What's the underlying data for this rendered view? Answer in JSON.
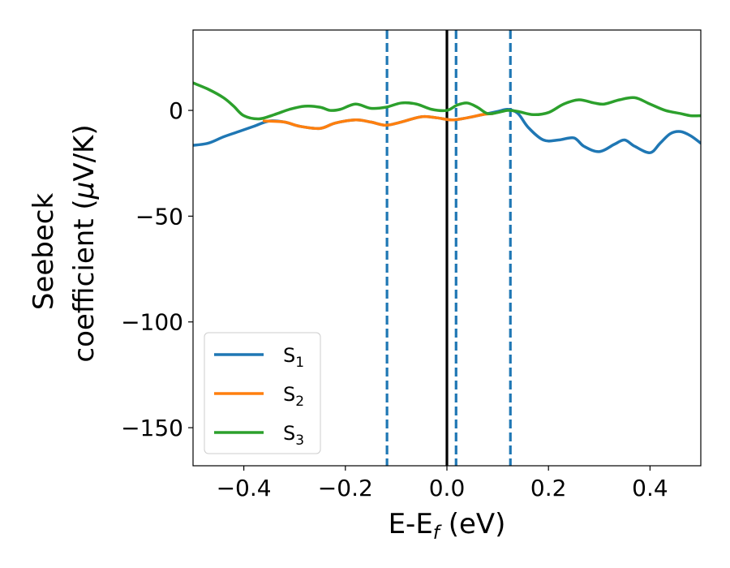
{
  "chart_data": {
    "type": "line",
    "title": "",
    "xlabel": "E-E",
    "xlabel_sub": "f",
    "xlabel_unit": " (eV)",
    "ylabel_line1": "Seebeck",
    "ylabel_line2": "coefficient  (",
    "ylabel_mu": "μ",
    "ylabel_unit": "V/K)",
    "xlim": [
      -0.5,
      0.5
    ],
    "ylim": [
      -168,
      38
    ],
    "xticks": [
      -0.4,
      -0.2,
      0.0,
      0.2,
      0.4
    ],
    "xtick_labels": [
      "−0.4",
      "−0.2",
      "0.0",
      "0.2",
      "0.4"
    ],
    "yticks": [
      0,
      -50,
      -100,
      -150
    ],
    "ytick_labels": [
      "0",
      "−50",
      "−100",
      "−150"
    ],
    "grid": false,
    "legend_position": "lower-left",
    "vlines": [
      {
        "x": 0.0,
        "style": "solid",
        "color": "#000000"
      },
      {
        "x": -0.118,
        "style": "dashed",
        "color": "#1f77b4"
      },
      {
        "x": 0.018,
        "style": "dashed",
        "color": "#1f77b4"
      },
      {
        "x": 0.125,
        "style": "dashed",
        "color": "#1f77b4"
      }
    ],
    "series": [
      {
        "name": "S",
        "name_sub": "1",
        "color": "#1f77b4",
        "points": [
          [
            -0.5,
            -16.5
          ],
          [
            -0.47,
            -15.5
          ],
          [
            -0.44,
            -12.5
          ],
          [
            -0.41,
            -10
          ],
          [
            -0.38,
            -7.5
          ],
          [
            -0.35,
            -5
          ],
          [
            -0.32,
            -5.5
          ],
          [
            -0.29,
            -7.5
          ],
          [
            -0.25,
            -8.5
          ],
          [
            -0.22,
            -6
          ],
          [
            -0.18,
            -4.5
          ],
          [
            -0.15,
            -5.5
          ],
          [
            -0.12,
            -7
          ],
          [
            -0.09,
            -5.5
          ],
          [
            -0.05,
            -3
          ],
          [
            -0.02,
            -3.5
          ],
          [
            0.01,
            -4.5
          ],
          [
            0.04,
            -3.5
          ],
          [
            0.07,
            -2
          ],
          [
            0.1,
            -0.5
          ],
          [
            0.12,
            0.5
          ],
          [
            0.14,
            -1.5
          ],
          [
            0.16,
            -8
          ],
          [
            0.19,
            -14
          ],
          [
            0.22,
            -14
          ],
          [
            0.25,
            -13
          ],
          [
            0.27,
            -17
          ],
          [
            0.3,
            -19.5
          ],
          [
            0.33,
            -16
          ],
          [
            0.35,
            -14
          ],
          [
            0.37,
            -17
          ],
          [
            0.4,
            -20
          ],
          [
            0.42,
            -15.5
          ],
          [
            0.44,
            -11
          ],
          [
            0.46,
            -10
          ],
          [
            0.48,
            -12
          ],
          [
            0.5,
            -15.5
          ]
        ]
      },
      {
        "name": "S",
        "name_sub": "2",
        "color": "#ff7f0e",
        "points": [
          [
            -0.36,
            -5
          ],
          [
            -0.32,
            -5.5
          ],
          [
            -0.29,
            -7.5
          ],
          [
            -0.25,
            -8.5
          ],
          [
            -0.22,
            -6
          ],
          [
            -0.18,
            -4.5
          ],
          [
            -0.15,
            -5.5
          ],
          [
            -0.12,
            -7
          ],
          [
            -0.09,
            -5.5
          ],
          [
            -0.05,
            -3
          ],
          [
            -0.02,
            -3.5
          ],
          [
            0.01,
            -4.5
          ],
          [
            0.04,
            -3.5
          ],
          [
            0.07,
            -2
          ],
          [
            0.09,
            -1.5
          ]
        ]
      },
      {
        "name": "S",
        "name_sub": "3",
        "color": "#2ca02c",
        "points": [
          [
            -0.5,
            13
          ],
          [
            -0.47,
            10
          ],
          [
            -0.44,
            6
          ],
          [
            -0.42,
            2
          ],
          [
            -0.4,
            -2.5
          ],
          [
            -0.37,
            -4
          ],
          [
            -0.34,
            -2
          ],
          [
            -0.31,
            0.5
          ],
          [
            -0.28,
            2
          ],
          [
            -0.25,
            1.5
          ],
          [
            -0.23,
            0
          ],
          [
            -0.21,
            0.5
          ],
          [
            -0.18,
            3
          ],
          [
            -0.15,
            1
          ],
          [
            -0.12,
            1.5
          ],
          [
            -0.09,
            3.5
          ],
          [
            -0.06,
            3
          ],
          [
            -0.03,
            0.5
          ],
          [
            0.0,
            0
          ],
          [
            0.02,
            2.5
          ],
          [
            0.04,
            3.5
          ],
          [
            0.06,
            1.5
          ],
          [
            0.08,
            -1.5
          ],
          [
            0.1,
            -1
          ],
          [
            0.12,
            0
          ],
          [
            0.14,
            -0.5
          ],
          [
            0.17,
            -2
          ],
          [
            0.2,
            -1
          ],
          [
            0.23,
            3
          ],
          [
            0.26,
            5
          ],
          [
            0.29,
            3.5
          ],
          [
            0.31,
            3
          ],
          [
            0.34,
            5
          ],
          [
            0.37,
            6
          ],
          [
            0.4,
            3
          ],
          [
            0.43,
            0
          ],
          [
            0.46,
            -1.5
          ],
          [
            0.48,
            -2.5
          ],
          [
            0.5,
            -2.5
          ]
        ]
      }
    ]
  }
}
